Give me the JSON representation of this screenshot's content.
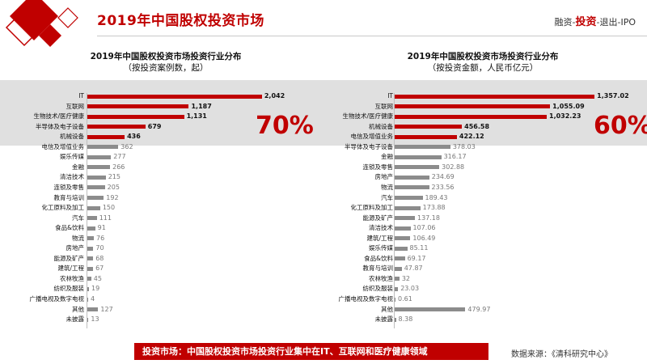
{
  "page": {
    "title": "2019年中国股权投资市场",
    "nav": {
      "before": "融资-",
      "active": "投资",
      "after": "-退出-IPO"
    },
    "conclusion": "投资市场：中国股权投资市场投资行业集中在IT、互联网和医疗健康领域",
    "source": "数据来源：《清科研究中心》"
  },
  "colors": {
    "highlight": "#c00000",
    "other": "#8c8c8c",
    "band": "#e0e0e0"
  },
  "chart_data": [
    {
      "type": "bar",
      "orientation": "horizontal",
      "title": "2019年中国股权投资市场投资行业分布",
      "subtitle": "（按投资案例数，起）",
      "highlight_pct": "70%",
      "highlight_count": 5,
      "xlim": [
        0,
        2100
      ],
      "categories": [
        "IT",
        "互联网",
        "生物技术/医疗健康",
        "半导体及电子设备",
        "机械设备",
        "电信及增值业务",
        "娱乐传媒",
        "金融",
        "清洁技术",
        "连锁及零售",
        "教育与培训",
        "化工原料及加工",
        "汽车",
        "食品&饮料",
        "物流",
        "房地产",
        "能源及矿产",
        "建筑/工程",
        "农林牧渔",
        "纺织及服装",
        "广播电视及数字电视",
        "其他",
        "未披露"
      ],
      "values": [
        2042,
        1187,
        1131,
        679,
        436,
        362,
        277,
        266,
        215,
        205,
        192,
        150,
        111,
        91,
        76,
        70,
        68,
        67,
        45,
        19,
        4,
        127,
        13
      ],
      "labels": [
        "2,042",
        "1,187",
        "1,131",
        "679",
        "436",
        "362",
        "277",
        "266",
        "215",
        "205",
        "192",
        "150",
        "111",
        "91",
        "76",
        "70",
        "68",
        "67",
        "45",
        "19",
        "4",
        "127",
        "13"
      ]
    },
    {
      "type": "bar",
      "orientation": "horizontal",
      "title": "2019年中国股权投资市场投资行业分布",
      "subtitle": "（按投资金额，人民币亿元）",
      "highlight_pct": "60%",
      "highlight_count": 5,
      "xlim": [
        0,
        1400
      ],
      "categories": [
        "IT",
        "互联网",
        "生物技术/医疗健康",
        "机械设备",
        "电信及增值业务",
        "半导体及电子设备",
        "金融",
        "连锁及零售",
        "房地产",
        "物流",
        "汽车",
        "化工原料及加工",
        "能源及矿产",
        "清洁技术",
        "建筑/工程",
        "娱乐传媒",
        "食品&饮料",
        "教育与培训",
        "农林牧渔",
        "纺织及服装",
        "广播电视及数字电视",
        "其他",
        "未披露"
      ],
      "values": [
        1357.02,
        1055.09,
        1032.23,
        456.58,
        422.12,
        378.03,
        316.17,
        302.88,
        234.69,
        233.56,
        189.43,
        173.88,
        137.18,
        107.06,
        106.49,
        85.11,
        69.17,
        47.87,
        32,
        23.03,
        0.61,
        479.97,
        8.38
      ],
      "labels": [
        "1,357.02",
        "1,055.09",
        "1,032.23",
        "456.58",
        "422.12",
        "378.03",
        "316.17",
        "302.88",
        "234.69",
        "233.56",
        "189.43",
        "173.88",
        "137.18",
        "107.06",
        "106.49",
        "85.11",
        "69.17",
        "47.87",
        "32",
        "23.03",
        "0.61",
        "479.97",
        "8.38"
      ]
    }
  ]
}
